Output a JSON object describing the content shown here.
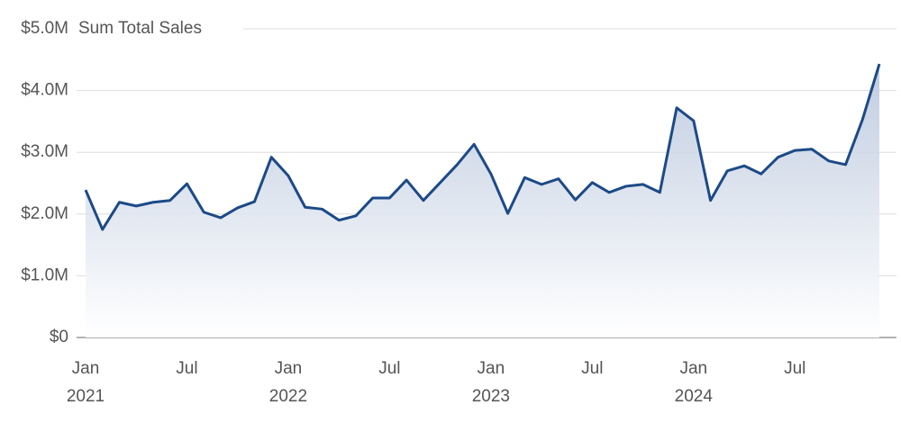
{
  "chart_data": {
    "type": "area",
    "title": "Sum Total Sales",
    "color": "#1c4a87",
    "categories": [
      "Jan\n2021",
      null,
      null,
      null,
      null,
      null,
      "Jul",
      null,
      null,
      null,
      null,
      null,
      "Jan\n2022",
      null,
      null,
      null,
      null,
      null,
      "Jul",
      null,
      null,
      null,
      null,
      null,
      "Jan\n2023",
      null,
      null,
      null,
      null,
      null,
      "Jul",
      null,
      null,
      null,
      null,
      null,
      "Jan\n2024",
      null,
      null,
      null,
      null,
      null,
      "Jul",
      null,
      null,
      null,
      null,
      null
    ],
    "values": [
      2390000,
      1750000,
      2190000,
      2130000,
      2190000,
      2220000,
      2490000,
      2030000,
      1940000,
      2100000,
      2200000,
      2920000,
      2620000,
      2110000,
      2080000,
      1900000,
      1970000,
      2260000,
      2260000,
      2550000,
      2220000,
      2510000,
      2800000,
      3130000,
      2650000,
      2010000,
      2590000,
      2480000,
      2570000,
      2230000,
      2510000,
      2350000,
      2450000,
      2480000,
      2350000,
      3720000,
      3510000,
      2220000,
      2700000,
      2780000,
      2650000,
      2920000,
      3030000,
      3050000,
      2860000,
      2800000,
      3530000,
      4430000
    ],
    "ylim": [
      0,
      5000000
    ],
    "yticks": [
      {
        "value": 0,
        "label": "$0"
      },
      {
        "value": 1000000,
        "label": "$1.0M"
      },
      {
        "value": 2000000,
        "label": "$2.0M"
      },
      {
        "value": 3000000,
        "label": "$3.0M"
      },
      {
        "value": 4000000,
        "label": "$4.0M"
      },
      {
        "value": 5000000,
        "label": "$5.0M"
      }
    ],
    "grid": true
  }
}
